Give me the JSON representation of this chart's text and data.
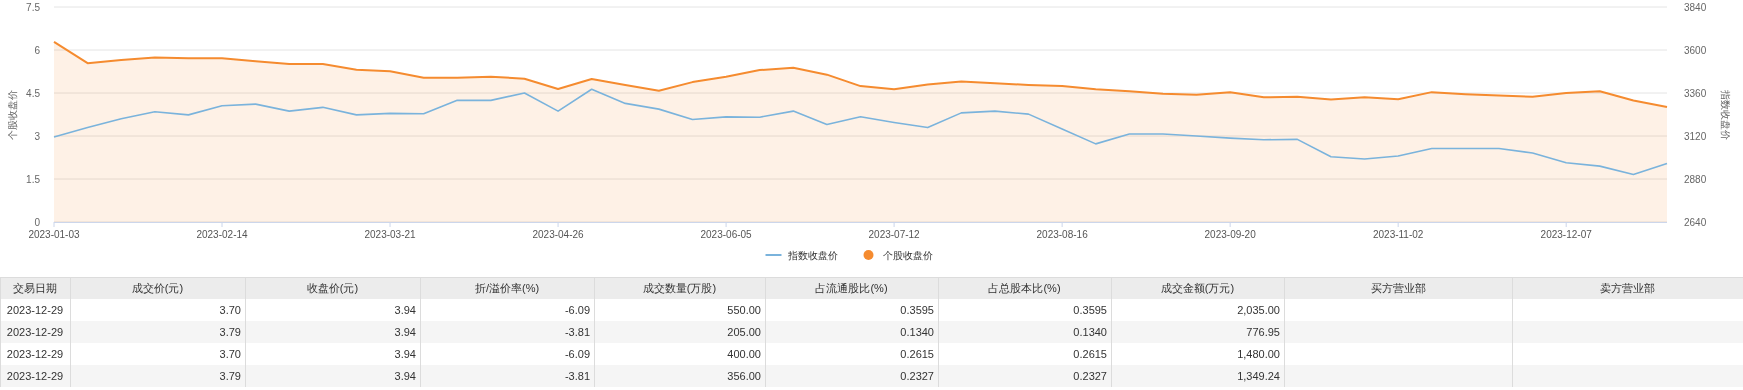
{
  "chart_data": [
    {
      "type": "line",
      "ylabel": "个股收盘价",
      "y2label": "指数收盘价",
      "categories": [
        "2023-01-03",
        null,
        null,
        null,
        null,
        "2023-02-14",
        null,
        null,
        null,
        null,
        "2023-03-21",
        null,
        null,
        null,
        null,
        "2023-04-26",
        null,
        null,
        null,
        null,
        "2023-06-05",
        null,
        null,
        null,
        null,
        "2023-07-12",
        null,
        null,
        null,
        null,
        "2023-08-16",
        null,
        null,
        null,
        null,
        "2023-09-20",
        null,
        null,
        null,
        null,
        "2023-11-02",
        null,
        null,
        null,
        null,
        "2023-12-07",
        null,
        null,
        null
      ],
      "ylim": [
        0,
        7.5
      ],
      "yticks": [
        0,
        1.5,
        3,
        4.5,
        6,
        7.5
      ],
      "y2lim": [
        2640,
        3840
      ],
      "y2ticks": [
        2640,
        2880,
        3120,
        3360,
        3600,
        3840
      ],
      "grid": "y",
      "legend": "bottom",
      "series": [
        {
          "name": "指数收盘价",
          "type": "line",
          "axis": "y2",
          "color": "#7ab3dc",
          "values": [
            3114,
            3167,
            3216,
            3255,
            3238,
            3289,
            3298,
            3259,
            3280,
            3238,
            3246,
            3244,
            3319,
            3319,
            3360,
            3259,
            3381,
            3302,
            3270,
            3212,
            3227,
            3225,
            3259,
            3184,
            3227,
            3195,
            3167,
            3249,
            3259,
            3242,
            3159,
            3076,
            3131,
            3131,
            3120,
            3108,
            3099,
            3101,
            3004,
            2992,
            3008,
            3050,
            3050,
            3050,
            3025,
            2971,
            2952,
            2905,
            2967
          ]
        },
        {
          "name": "个股收盘价",
          "type": "area",
          "color": "#f58b2f",
          "values": [
            6.28,
            5.54,
            5.65,
            5.74,
            5.71,
            5.71,
            5.61,
            5.51,
            5.51,
            5.31,
            5.26,
            5.03,
            5.03,
            5.07,
            5.0,
            4.64,
            4.99,
            4.78,
            4.58,
            4.88,
            5.07,
            5.3,
            5.38,
            5.14,
            4.74,
            4.63,
            4.8,
            4.9,
            4.84,
            4.78,
            4.74,
            4.63,
            4.56,
            4.47,
            4.44,
            4.53,
            4.35,
            4.37,
            4.27,
            4.35,
            4.28,
            4.53,
            4.46,
            4.41,
            4.37,
            4.5,
            4.56,
            4.24,
            4.01
          ]
        }
      ]
    },
    {
      "type": "other",
      "categories": [
        "交易日期",
        "成交价(元)",
        "收盘价(元)",
        "折/溢价率(%)",
        "成交数量(万股)",
        "占流通股比(%)",
        "占总股本比(%)",
        "成交金额(万元)",
        "买方营业部",
        "卖方营业部"
      ],
      "annotations": [
        "2023-12-29",
        "3.70",
        "3.94",
        "-6.09",
        "550.00",
        "0.3595",
        "0.3595",
        "2,035.00",
        null,
        null,
        "2023-12-29",
        "3.79",
        "3.94",
        "-3.81",
        "205.00",
        "0.1340",
        "0.1340",
        "776.95",
        null,
        null,
        "2023-12-29",
        "3.70",
        "3.94",
        "-6.09",
        "400.00",
        "0.2615",
        "0.2615",
        "1,480.00",
        null,
        null,
        "2023-12-29",
        "3.79",
        "3.94",
        "-3.81",
        "356.00",
        "0.2327",
        "0.2327",
        "1,349.24",
        null,
        null
      ]
    }
  ]
}
